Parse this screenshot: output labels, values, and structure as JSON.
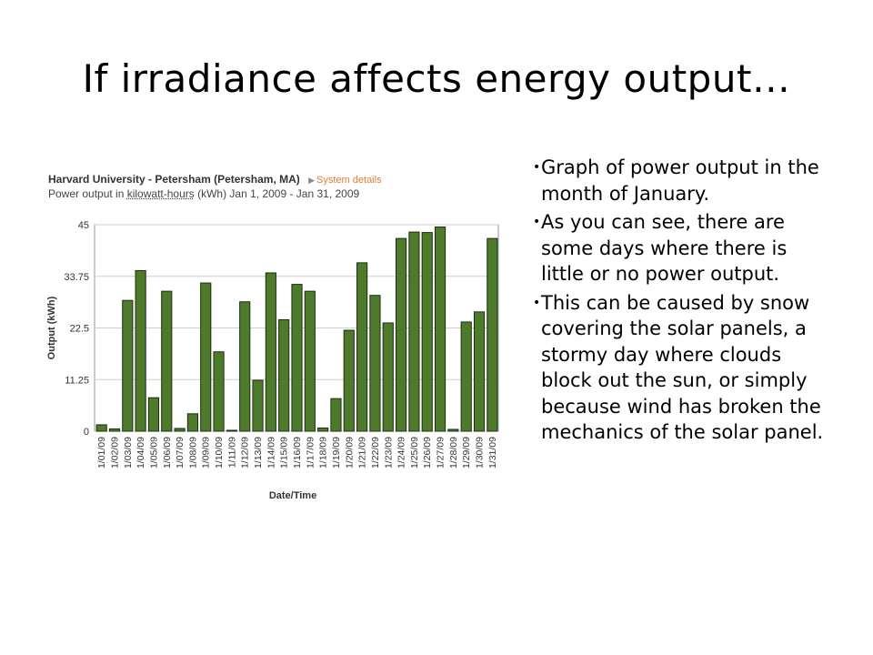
{
  "slide": {
    "title": "If irradiance affects energy output…",
    "bullets": [
      "Graph of power output in the month of January.",
      "As you can see, there are some days where there is little or no power output.",
      "This can be caused by snow covering the solar panels, a stormy day where clouds block out the sun, or simply because wind has broken the mechanics of the solar panel."
    ]
  },
  "chart_header": {
    "title": "Harvard University - Petersham (Petersham, MA)",
    "link_label": "System details",
    "subtitle_prefix": "Power output in ",
    "subtitle_unit_link": "kilowatt-hours",
    "subtitle_suffix": " (kWh) Jan 1, 2009 - Jan 31, 2009"
  },
  "colors": {
    "bar_fill": "#4e7a2c",
    "bar_stroke": "#1d2e10",
    "grid": "#cfcfcf",
    "link": "#e07b39"
  },
  "chart_data": {
    "type": "bar",
    "xlabel": "Date/Time",
    "ylabel": "Output (kWh)",
    "ylim": [
      0,
      45
    ],
    "yticks": [
      "0",
      "11.25",
      "22.5",
      "33.75",
      "45"
    ],
    "grid": true,
    "categories": [
      "1/01/09",
      "1/02/09",
      "1/03/09",
      "1/04/09",
      "1/05/09",
      "1/06/09",
      "1/07/09",
      "1/08/09",
      "1/09/09",
      "1/10/09",
      "1/11/09",
      "1/12/09",
      "1/13/09",
      "1/14/09",
      "1/15/09",
      "1/16/09",
      "1/17/09",
      "1/18/09",
      "1/19/09",
      "1/20/09",
      "1/21/09",
      "1/22/09",
      "1/23/09",
      "1/24/09",
      "1/25/09",
      "1/26/09",
      "1/27/09",
      "1/28/09",
      "1/29/09",
      "1/30/09",
      "1/31/09"
    ],
    "values": [
      1.4,
      0.5,
      28.5,
      35,
      7.3,
      30.5,
      0.6,
      3.8,
      32.3,
      17.3,
      0.1,
      28.2,
      11.1,
      34.5,
      24.3,
      32,
      30.5,
      0.7,
      7.1,
      22,
      36.7,
      29.6,
      23.6,
      42,
      43.4,
      43.3,
      44.5,
      0.4,
      23.8,
      26,
      42
    ]
  }
}
